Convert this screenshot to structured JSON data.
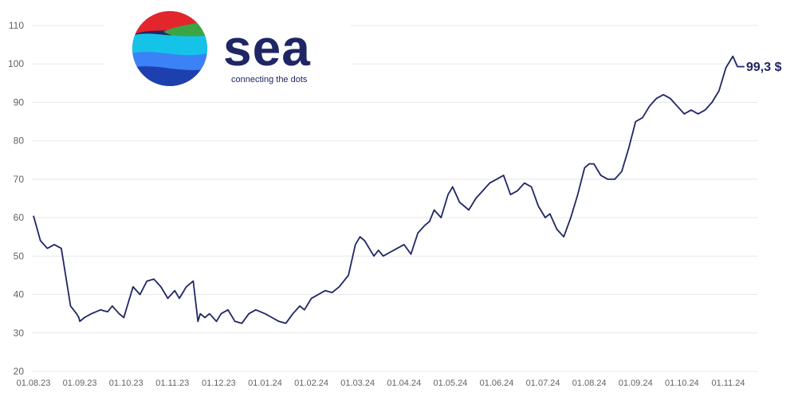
{
  "logo": {
    "word": "sea",
    "tagline": "connecting the dots",
    "colors": [
      "#e3262b",
      "#f26522",
      "#3aa545",
      "#16c3e8",
      "#3b82f6",
      "#1e40af",
      "#1f2666"
    ]
  },
  "chart_data": {
    "type": "line",
    "title": "",
    "xlabel": "",
    "ylabel": "",
    "ylim": [
      20,
      110
    ],
    "yticks": [
      "20",
      "30",
      "40",
      "50",
      "60",
      "70",
      "80",
      "90",
      "100",
      "110"
    ],
    "xticks": [
      "01.08.23",
      "01.09.23",
      "01.10.23",
      "01.11.23",
      "01.12.23",
      "01.01.24",
      "01.02.24",
      "01.03.24",
      "01.04.24",
      "01.05.24",
      "01.06.24",
      "01.07.24",
      "01.08.24",
      "01.09.24",
      "01.10.24",
      "01.11.24"
    ],
    "grid": true,
    "line_color": "#1f2666",
    "end_label": "99,3 $",
    "series": [
      {
        "x": [
          0.0,
          0.15,
          0.3,
          0.45,
          0.6,
          0.8,
          0.93,
          0.98,
          1.0,
          1.1,
          1.25,
          1.45,
          1.6,
          1.7,
          1.85,
          1.95,
          2.05,
          2.15,
          2.3,
          2.45,
          2.6,
          2.75,
          2.9,
          3.05,
          3.15,
          3.3,
          3.45,
          3.55,
          3.6,
          3.7,
          3.8,
          3.95,
          4.05,
          4.2,
          4.35,
          4.5,
          4.65,
          4.8,
          5.0,
          5.15,
          5.3,
          5.45,
          5.6,
          5.75,
          5.85,
          6.0,
          6.15,
          6.3,
          6.45,
          6.6,
          6.8,
          6.95,
          7.05,
          7.15,
          7.25,
          7.35,
          7.45,
          7.55,
          7.7,
          7.85,
          8.0,
          8.15,
          8.3,
          8.45,
          8.55,
          8.65,
          8.8,
          8.95,
          9.05,
          9.2,
          9.4,
          9.55,
          9.7,
          9.85,
          10.0,
          10.15,
          10.3,
          10.45,
          10.6,
          10.75,
          10.9,
          11.05,
          11.15,
          11.3,
          11.45,
          11.6,
          11.75,
          11.9,
          12.0,
          12.1,
          12.25,
          12.4,
          12.55,
          12.7,
          12.85,
          13.0,
          13.15,
          13.3,
          13.45,
          13.6,
          13.75,
          13.9,
          14.05,
          14.2,
          14.35,
          14.5,
          14.65,
          14.8,
          14.95,
          15.1,
          15.2,
          15.28,
          15.32,
          15.35
        ],
        "y": [
          60.5,
          54,
          52,
          53,
          52,
          37,
          35,
          34,
          33,
          34,
          35,
          36,
          35.5,
          37,
          35,
          34,
          38,
          42,
          40,
          43.5,
          44,
          42,
          39,
          41,
          39,
          42,
          43.5,
          33,
          35,
          34,
          35,
          33,
          35,
          36,
          33,
          32.5,
          35,
          36,
          35,
          34,
          33,
          32.5,
          35,
          37,
          36,
          39,
          40,
          41,
          40.5,
          42,
          45,
          53,
          55,
          54,
          52,
          50,
          51.5,
          50,
          51,
          52,
          53,
          50.5,
          56,
          58,
          59,
          62,
          60,
          66,
          68,
          64,
          62,
          65,
          67,
          69,
          70,
          71,
          66,
          67,
          69,
          68,
          63,
          60,
          61,
          57,
          55,
          60,
          66,
          73,
          74,
          74,
          71,
          70,
          70,
          72,
          78,
          85,
          86,
          89,
          91,
          92,
          91,
          89,
          87,
          88,
          87,
          88,
          90,
          93,
          99,
          102,
          99.3,
          99.3,
          99.3,
          99.3
        ]
      }
    ]
  }
}
